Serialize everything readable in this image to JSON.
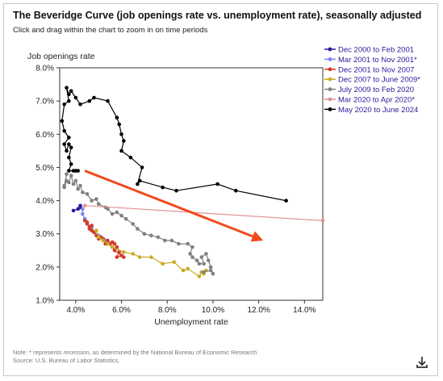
{
  "header": {
    "title": "The Beveridge Curve (job openings rate vs. unemployment rate), seasonally adjusted",
    "subtitle": "Click and drag within the chart to zoom in on time periods"
  },
  "footer": {
    "note": "Note: * represents recession, as determined by the National Bureau of Economic Research",
    "source": "Source: U.S. Bureau of Labor Statistics."
  },
  "download": {
    "icon": "download-icon"
  },
  "chart_data": {
    "type": "line",
    "title": "The Beveridge Curve (job openings rate vs. unemployment rate), seasonally adjusted",
    "xlabel": "Unemployment rate",
    "ylabel": "Job openings rate",
    "xlim": [
      3.3,
      14.8
    ],
    "ylim": [
      1.0,
      8.0
    ],
    "x_ticks": [
      "4.0%",
      "6.0%",
      "8.0%",
      "10.0%",
      "12.0%",
      "14.0%"
    ],
    "x_tick_values": [
      4,
      6,
      8,
      10,
      12,
      14
    ],
    "y_ticks": [
      "1.0%",
      "2.0%",
      "3.0%",
      "4.0%",
      "5.0%",
      "6.0%",
      "7.0%",
      "8.0%"
    ],
    "y_tick_values": [
      1,
      2,
      3,
      4,
      5,
      6,
      7,
      8
    ],
    "grid": false,
    "legend_position": "top-right",
    "series": [
      {
        "name": "Dec 2000 to Feb 2001",
        "color": "#2a1a9c",
        "points": [
          [
            3.9,
            3.7
          ],
          [
            4.1,
            3.75
          ],
          [
            4.2,
            3.8
          ],
          [
            4.2,
            3.85
          ]
        ]
      },
      {
        "name": "Mar 2001 to Nov 2001*",
        "color": "#7a83f2",
        "points": [
          [
            4.3,
            3.75
          ],
          [
            4.3,
            3.6
          ],
          [
            4.4,
            3.45
          ],
          [
            4.5,
            3.3
          ],
          [
            4.7,
            3.2
          ],
          [
            4.8,
            3.05
          ],
          [
            5.0,
            2.95
          ],
          [
            5.2,
            2.85
          ],
          [
            5.3,
            2.8
          ]
        ]
      },
      {
        "name": "Dec 2001 to Nov 2007",
        "color": "#d43a2a",
        "points": [
          [
            5.7,
            2.7
          ],
          [
            5.6,
            2.75
          ],
          [
            5.8,
            2.6
          ],
          [
            5.9,
            2.45
          ],
          [
            5.8,
            2.3
          ],
          [
            6.0,
            2.35
          ],
          [
            6.1,
            2.3
          ],
          [
            5.7,
            2.5
          ],
          [
            5.6,
            2.6
          ],
          [
            5.5,
            2.7
          ],
          [
            5.4,
            2.8
          ],
          [
            5.3,
            2.7
          ],
          [
            5.2,
            2.85
          ],
          [
            5.1,
            2.9
          ],
          [
            5.0,
            2.85
          ],
          [
            4.9,
            2.95
          ],
          [
            4.8,
            3.05
          ],
          [
            4.7,
            3.1
          ],
          [
            4.6,
            3.2
          ],
          [
            4.5,
            3.3
          ],
          [
            4.4,
            3.4
          ],
          [
            4.5,
            3.35
          ],
          [
            4.6,
            3.15
          ],
          [
            4.7,
            3.25
          ]
        ]
      },
      {
        "name": "Dec 2007 to June 2009*",
        "color": "#c8ab22",
        "points": [
          [
            4.9,
            3.1
          ],
          [
            5.0,
            2.9
          ],
          [
            5.2,
            2.8
          ],
          [
            5.4,
            2.7
          ],
          [
            5.6,
            2.6
          ],
          [
            6.1,
            2.45
          ],
          [
            6.5,
            2.4
          ],
          [
            6.8,
            2.3
          ],
          [
            7.3,
            2.3
          ],
          [
            7.8,
            2.1
          ],
          [
            8.3,
            2.15
          ],
          [
            8.7,
            1.9
          ],
          [
            8.9,
            1.95
          ],
          [
            9.4,
            1.72
          ],
          [
            9.5,
            1.85
          ],
          [
            9.6,
            1.8
          ],
          [
            9.7,
            1.9
          ]
        ]
      },
      {
        "name": "July 2009 to Feb 2020",
        "color": "#808080",
        "points": [
          [
            9.6,
            1.85
          ],
          [
            9.9,
            1.9
          ],
          [
            10.0,
            1.8
          ],
          [
            9.9,
            2.0
          ],
          [
            9.8,
            2.2
          ],
          [
            9.7,
            2.4
          ],
          [
            9.5,
            2.3
          ],
          [
            9.6,
            2.1
          ],
          [
            9.4,
            2.1
          ],
          [
            9.3,
            2.2
          ],
          [
            9.1,
            2.3
          ],
          [
            9.0,
            2.4
          ],
          [
            9.1,
            2.6
          ],
          [
            8.9,
            2.7
          ],
          [
            8.5,
            2.7
          ],
          [
            8.2,
            2.8
          ],
          [
            7.9,
            2.8
          ],
          [
            7.6,
            2.9
          ],
          [
            7.3,
            2.95
          ],
          [
            7.0,
            3.0
          ],
          [
            6.7,
            3.15
          ],
          [
            6.5,
            3.3
          ],
          [
            6.2,
            3.45
          ],
          [
            6.0,
            3.55
          ],
          [
            5.8,
            3.65
          ],
          [
            5.6,
            3.6
          ],
          [
            5.4,
            3.75
          ],
          [
            5.3,
            3.8
          ],
          [
            5.0,
            3.9
          ],
          [
            4.9,
            4.05
          ],
          [
            4.7,
            4.0
          ],
          [
            4.5,
            4.2
          ],
          [
            4.3,
            4.25
          ],
          [
            4.2,
            4.45
          ],
          [
            4.1,
            4.35
          ],
          [
            4.0,
            4.6
          ],
          [
            3.9,
            4.5
          ],
          [
            3.8,
            4.75
          ],
          [
            3.7,
            4.55
          ],
          [
            3.6,
            4.6
          ],
          [
            3.5,
            4.4
          ],
          [
            3.6,
            4.8
          ],
          [
            3.5,
            4.45
          ]
        ]
      },
      {
        "name": "Mar 2020 to Apr 2020*",
        "color": "#e39094",
        "points": [
          [
            4.4,
            3.85
          ],
          [
            14.8,
            3.4
          ]
        ]
      },
      {
        "name": "May 2020 to June 2024",
        "color": "#000000",
        "points": [
          [
            13.2,
            4.0
          ],
          [
            11.0,
            4.3
          ],
          [
            10.2,
            4.5
          ],
          [
            8.4,
            4.3
          ],
          [
            7.8,
            4.4
          ],
          [
            6.8,
            4.6
          ],
          [
            6.7,
            4.5
          ],
          [
            6.9,
            5.0
          ],
          [
            6.4,
            5.3
          ],
          [
            6.0,
            5.5
          ],
          [
            6.1,
            5.8
          ],
          [
            6.0,
            6.0
          ],
          [
            5.9,
            6.3
          ],
          [
            5.8,
            6.5
          ],
          [
            5.4,
            7.0
          ],
          [
            4.8,
            7.1
          ],
          [
            4.6,
            7.0
          ],
          [
            4.2,
            6.9
          ],
          [
            4.0,
            7.1
          ],
          [
            3.8,
            7.3
          ],
          [
            3.7,
            7.2
          ],
          [
            3.6,
            7.4
          ],
          [
            3.7,
            7.0
          ],
          [
            3.5,
            6.9
          ],
          [
            3.4,
            6.4
          ],
          [
            3.5,
            6.1
          ],
          [
            3.7,
            5.9
          ],
          [
            3.5,
            5.7
          ],
          [
            3.6,
            5.5
          ],
          [
            3.7,
            5.7
          ],
          [
            3.8,
            5.6
          ],
          [
            3.7,
            5.3
          ],
          [
            3.8,
            5.1
          ],
          [
            3.7,
            4.9
          ],
          [
            3.9,
            4.9
          ],
          [
            4.0,
            4.9
          ],
          [
            4.1,
            4.9
          ]
        ]
      }
    ],
    "annotation_arrow": {
      "color": "#f04a1d",
      "from": [
        4.4,
        4.9
      ],
      "to": [
        12.2,
        2.8
      ]
    }
  }
}
